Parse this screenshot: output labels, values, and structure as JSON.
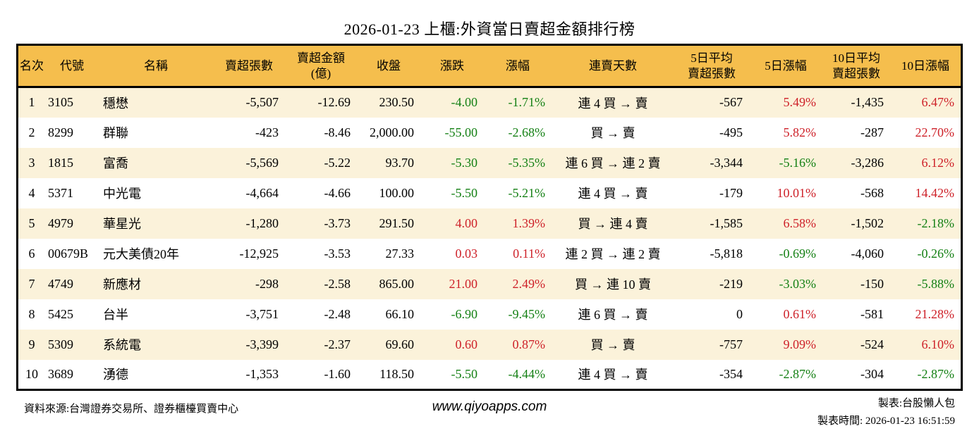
{
  "title": "2026-01-23 上櫃:外資當日賣超金額排行榜",
  "colors": {
    "header_bg": "#f5be4d",
    "row_alt_bg": "#fbf2da",
    "up_red": "#ce2129",
    "down_green": "#148014",
    "border": "#000000"
  },
  "table": {
    "columns": [
      {
        "key": "rank",
        "label": "名次"
      },
      {
        "key": "code",
        "label": "代號"
      },
      {
        "key": "name",
        "label": "名稱"
      },
      {
        "key": "sell_volume",
        "label": "賣超張數"
      },
      {
        "key": "sell_amount",
        "label": "賣超金額\n(億)"
      },
      {
        "key": "close",
        "label": "收盤"
      },
      {
        "key": "change",
        "label": "漲跌"
      },
      {
        "key": "change_pct",
        "label": "漲幅"
      },
      {
        "key": "streak",
        "label": "連賣天數"
      },
      {
        "key": "avg5",
        "label": "5日平均\n賣超張數"
      },
      {
        "key": "pct5",
        "label": "5日漲幅"
      },
      {
        "key": "avg10",
        "label": "10日平均\n賣超張數"
      },
      {
        "key": "pct10",
        "label": "10日漲幅"
      }
    ],
    "rows": [
      {
        "rank": "1",
        "code": "3105",
        "name": "穩懋",
        "sell_volume": "-5,507",
        "sell_amount": "-12.69",
        "close": "230.50",
        "change": {
          "text": "-4.00",
          "dir": "down"
        },
        "change_pct": {
          "text": "-1.71%",
          "dir": "down"
        },
        "streak": "連 4 買 → 賣",
        "avg5": "-567",
        "pct5": {
          "text": "5.49%",
          "dir": "up"
        },
        "avg10": "-1,435",
        "pct10": {
          "text": "6.47%",
          "dir": "up"
        }
      },
      {
        "rank": "2",
        "code": "8299",
        "name": "群聯",
        "sell_volume": "-423",
        "sell_amount": "-8.46",
        "close": "2,000.00",
        "change": {
          "text": "-55.00",
          "dir": "down"
        },
        "change_pct": {
          "text": "-2.68%",
          "dir": "down"
        },
        "streak": "買 → 賣",
        "avg5": "-495",
        "pct5": {
          "text": "5.82%",
          "dir": "up"
        },
        "avg10": "-287",
        "pct10": {
          "text": "22.70%",
          "dir": "up"
        }
      },
      {
        "rank": "3",
        "code": "1815",
        "name": "富喬",
        "sell_volume": "-5,569",
        "sell_amount": "-5.22",
        "close": "93.70",
        "change": {
          "text": "-5.30",
          "dir": "down"
        },
        "change_pct": {
          "text": "-5.35%",
          "dir": "down"
        },
        "streak": "連 6 買 → 連 2 賣",
        "avg5": "-3,344",
        "pct5": {
          "text": "-5.16%",
          "dir": "down"
        },
        "avg10": "-3,286",
        "pct10": {
          "text": "6.12%",
          "dir": "up"
        }
      },
      {
        "rank": "4",
        "code": "5371",
        "name": "中光電",
        "sell_volume": "-4,664",
        "sell_amount": "-4.66",
        "close": "100.00",
        "change": {
          "text": "-5.50",
          "dir": "down"
        },
        "change_pct": {
          "text": "-5.21%",
          "dir": "down"
        },
        "streak": "連 4 買 → 賣",
        "avg5": "-179",
        "pct5": {
          "text": "10.01%",
          "dir": "up"
        },
        "avg10": "-568",
        "pct10": {
          "text": "14.42%",
          "dir": "up"
        }
      },
      {
        "rank": "5",
        "code": "4979",
        "name": "華星光",
        "sell_volume": "-1,280",
        "sell_amount": "-3.73",
        "close": "291.50",
        "change": {
          "text": "4.00",
          "dir": "up"
        },
        "change_pct": {
          "text": "1.39%",
          "dir": "up"
        },
        "streak": "買 → 連 4 賣",
        "avg5": "-1,585",
        "pct5": {
          "text": "6.58%",
          "dir": "up"
        },
        "avg10": "-1,502",
        "pct10": {
          "text": "-2.18%",
          "dir": "down"
        }
      },
      {
        "rank": "6",
        "code": "00679B",
        "name": "元大美債20年",
        "sell_volume": "-12,925",
        "sell_amount": "-3.53",
        "close": "27.33",
        "change": {
          "text": "0.03",
          "dir": "up"
        },
        "change_pct": {
          "text": "0.11%",
          "dir": "up"
        },
        "streak": "連 2 買 → 連 2 賣",
        "avg5": "-5,818",
        "pct5": {
          "text": "-0.69%",
          "dir": "down"
        },
        "avg10": "-4,060",
        "pct10": {
          "text": "-0.26%",
          "dir": "down"
        }
      },
      {
        "rank": "7",
        "code": "4749",
        "name": "新應材",
        "sell_volume": "-298",
        "sell_amount": "-2.58",
        "close": "865.00",
        "change": {
          "text": "21.00",
          "dir": "up"
        },
        "change_pct": {
          "text": "2.49%",
          "dir": "up"
        },
        "streak": "買 → 連 10 賣",
        "avg5": "-219",
        "pct5": {
          "text": "-3.03%",
          "dir": "down"
        },
        "avg10": "-150",
        "pct10": {
          "text": "-5.88%",
          "dir": "down"
        }
      },
      {
        "rank": "8",
        "code": "5425",
        "name": "台半",
        "sell_volume": "-3,751",
        "sell_amount": "-2.48",
        "close": "66.10",
        "change": {
          "text": "-6.90",
          "dir": "down"
        },
        "change_pct": {
          "text": "-9.45%",
          "dir": "down"
        },
        "streak": "連 6 買 → 賣",
        "avg5": "0",
        "pct5": {
          "text": "0.61%",
          "dir": "up"
        },
        "avg10": "-581",
        "pct10": {
          "text": "21.28%",
          "dir": "up"
        }
      },
      {
        "rank": "9",
        "code": "5309",
        "name": "系統電",
        "sell_volume": "-3,399",
        "sell_amount": "-2.37",
        "close": "69.60",
        "change": {
          "text": "0.60",
          "dir": "up"
        },
        "change_pct": {
          "text": "0.87%",
          "dir": "up"
        },
        "streak": "買 → 賣",
        "avg5": "-757",
        "pct5": {
          "text": "9.09%",
          "dir": "up"
        },
        "avg10": "-524",
        "pct10": {
          "text": "6.10%",
          "dir": "up"
        }
      },
      {
        "rank": "10",
        "code": "3689",
        "name": "湧德",
        "sell_volume": "-1,353",
        "sell_amount": "-1.60",
        "close": "118.50",
        "change": {
          "text": "-5.50",
          "dir": "down"
        },
        "change_pct": {
          "text": "-4.44%",
          "dir": "down"
        },
        "streak": "連 4 買 → 賣",
        "avg5": "-354",
        "pct5": {
          "text": "-2.87%",
          "dir": "down"
        },
        "avg10": "-304",
        "pct10": {
          "text": "-2.87%",
          "dir": "down"
        }
      }
    ]
  },
  "footer": {
    "source": "資料來源:台灣證券交易所、證券櫃檯買賣中心",
    "website": "www.qiyoapps.com",
    "author": "製表:台股懶人包",
    "generated_at": "製表時間: 2026-01-23 16:51:59"
  }
}
